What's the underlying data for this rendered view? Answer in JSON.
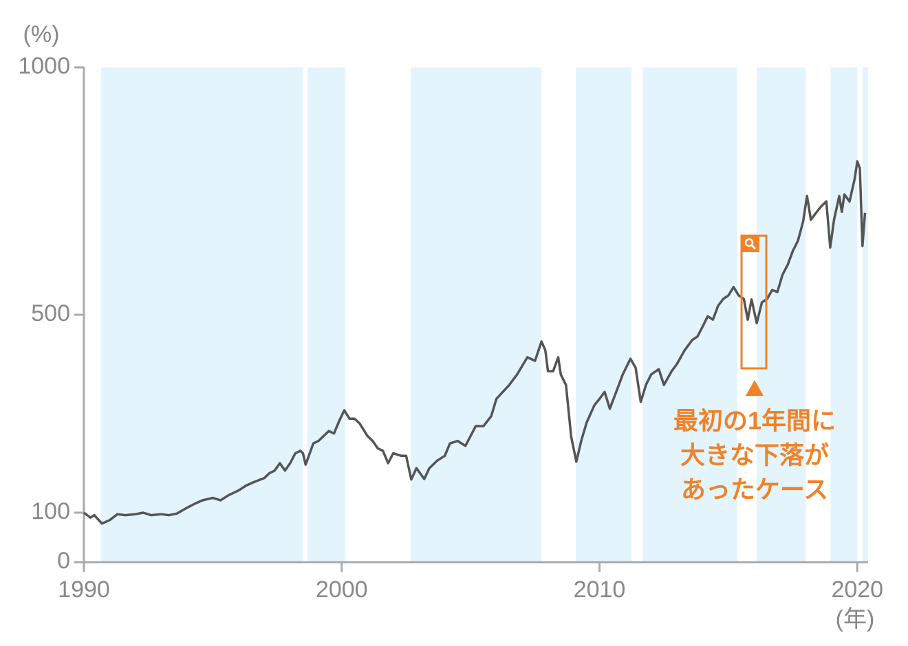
{
  "chart_data": {
    "type": "line",
    "y_unit_label": "(%)",
    "x_unit_label": "(年)",
    "annotation": [
      "最初の1年間に",
      "大きな下落が",
      "あったケース"
    ],
    "xlim": [
      1990,
      2020.42
    ],
    "ylim": [
      0,
      1000
    ],
    "xticks": [
      1990,
      2000,
      2010,
      2020
    ],
    "yticks": [
      0,
      100,
      500,
      1000
    ],
    "shaded_color": "#e3f4fc",
    "shaded": [
      [
        1990.67,
        1998.49
      ],
      [
        1998.67,
        2000.14
      ],
      [
        2002.68,
        2007.75
      ],
      [
        2009.08,
        2011.24
      ],
      [
        2011.67,
        2015.35
      ],
      [
        2016.1,
        2018.0
      ],
      [
        2018.96,
        2020.0
      ],
      [
        2020.21,
        2020.42
      ]
    ],
    "series": [
      {
        "color": "#555555",
        "x": [
          1990.0,
          1990.25,
          1990.4,
          1990.7,
          1991.0,
          1991.3,
          1991.6,
          1992.0,
          1992.3,
          1992.6,
          1993.0,
          1993.3,
          1993.6,
          1994.0,
          1994.3,
          1994.6,
          1995.0,
          1995.3,
          1995.6,
          1996.0,
          1996.3,
          1996.6,
          1997.0,
          1997.2,
          1997.4,
          1997.6,
          1997.8,
          1998.0,
          1998.2,
          1998.4,
          1998.5,
          1998.6,
          1998.9,
          1999.1,
          1999.3,
          1999.5,
          1999.7,
          1999.9,
          2000.1,
          2000.3,
          2000.5,
          2000.7,
          2001.0,
          2001.2,
          2001.4,
          2001.6,
          2001.8,
          2002.0,
          2002.3,
          2002.5,
          2002.7,
          2002.9,
          2003.2,
          2003.4,
          2003.7,
          2004.0,
          2004.2,
          2004.5,
          2004.8,
          2005.0,
          2005.2,
          2005.5,
          2005.8,
          2006.0,
          2006.5,
          2006.8,
          2007.2,
          2007.5,
          2007.75,
          2007.9,
          2008.0,
          2008.2,
          2008.4,
          2008.5,
          2008.7,
          2008.9,
          2009.1,
          2009.3,
          2009.5,
          2009.8,
          2010.0,
          2010.2,
          2010.4,
          2010.7,
          2010.9,
          2011.2,
          2011.4,
          2011.6,
          2011.8,
          2012.0,
          2012.3,
          2012.5,
          2012.8,
          2013.0,
          2013.3,
          2013.6,
          2013.8,
          2014.0,
          2014.2,
          2014.4,
          2014.6,
          2014.8,
          2015.0,
          2015.2,
          2015.4,
          2015.6,
          2015.75,
          2015.9,
          2016.1,
          2016.3,
          2016.5,
          2016.7,
          2016.9,
          2017.1,
          2017.3,
          2017.5,
          2017.7,
          2017.9,
          2018.05,
          2018.2,
          2018.4,
          2018.6,
          2018.8,
          2018.95,
          2019.1,
          2019.3,
          2019.4,
          2019.5,
          2019.7,
          2019.9,
          2020.0,
          2020.1,
          2020.2,
          2020.3
        ],
        "values": [
          100,
          90,
          95,
          78,
          85,
          97,
          95,
          97,
          100,
          95,
          97,
          95,
          98,
          110,
          118,
          125,
          130,
          125,
          135,
          145,
          155,
          162,
          170,
          180,
          185,
          200,
          185,
          200,
          220,
          225,
          220,
          197,
          240,
          245,
          255,
          265,
          260,
          285,
          307,
          290,
          290,
          280,
          255,
          245,
          230,
          225,
          200,
          220,
          215,
          215,
          167,
          190,
          168,
          190,
          205,
          215,
          240,
          245,
          235,
          255,
          275,
          275,
          295,
          330,
          358,
          379,
          414,
          407,
          446,
          428,
          386,
          386,
          414,
          379,
          358,
          254,
          203,
          247,
          282,
          317,
          330,
          344,
          310,
          351,
          379,
          411,
          393,
          324,
          358,
          379,
          390,
          358,
          386,
          400,
          428,
          449,
          456,
          476,
          497,
          490,
          518,
          532,
          539,
          556,
          539,
          532,
          490,
          531,
          483,
          525,
          532,
          550,
          546,
          581,
          601,
          629,
          650,
          689,
          740,
          692,
          706,
          719,
          729,
          636,
          692,
          740,
          708,
          743,
          729,
          775,
          810,
          796,
          639,
          706
        ]
      }
    ]
  }
}
